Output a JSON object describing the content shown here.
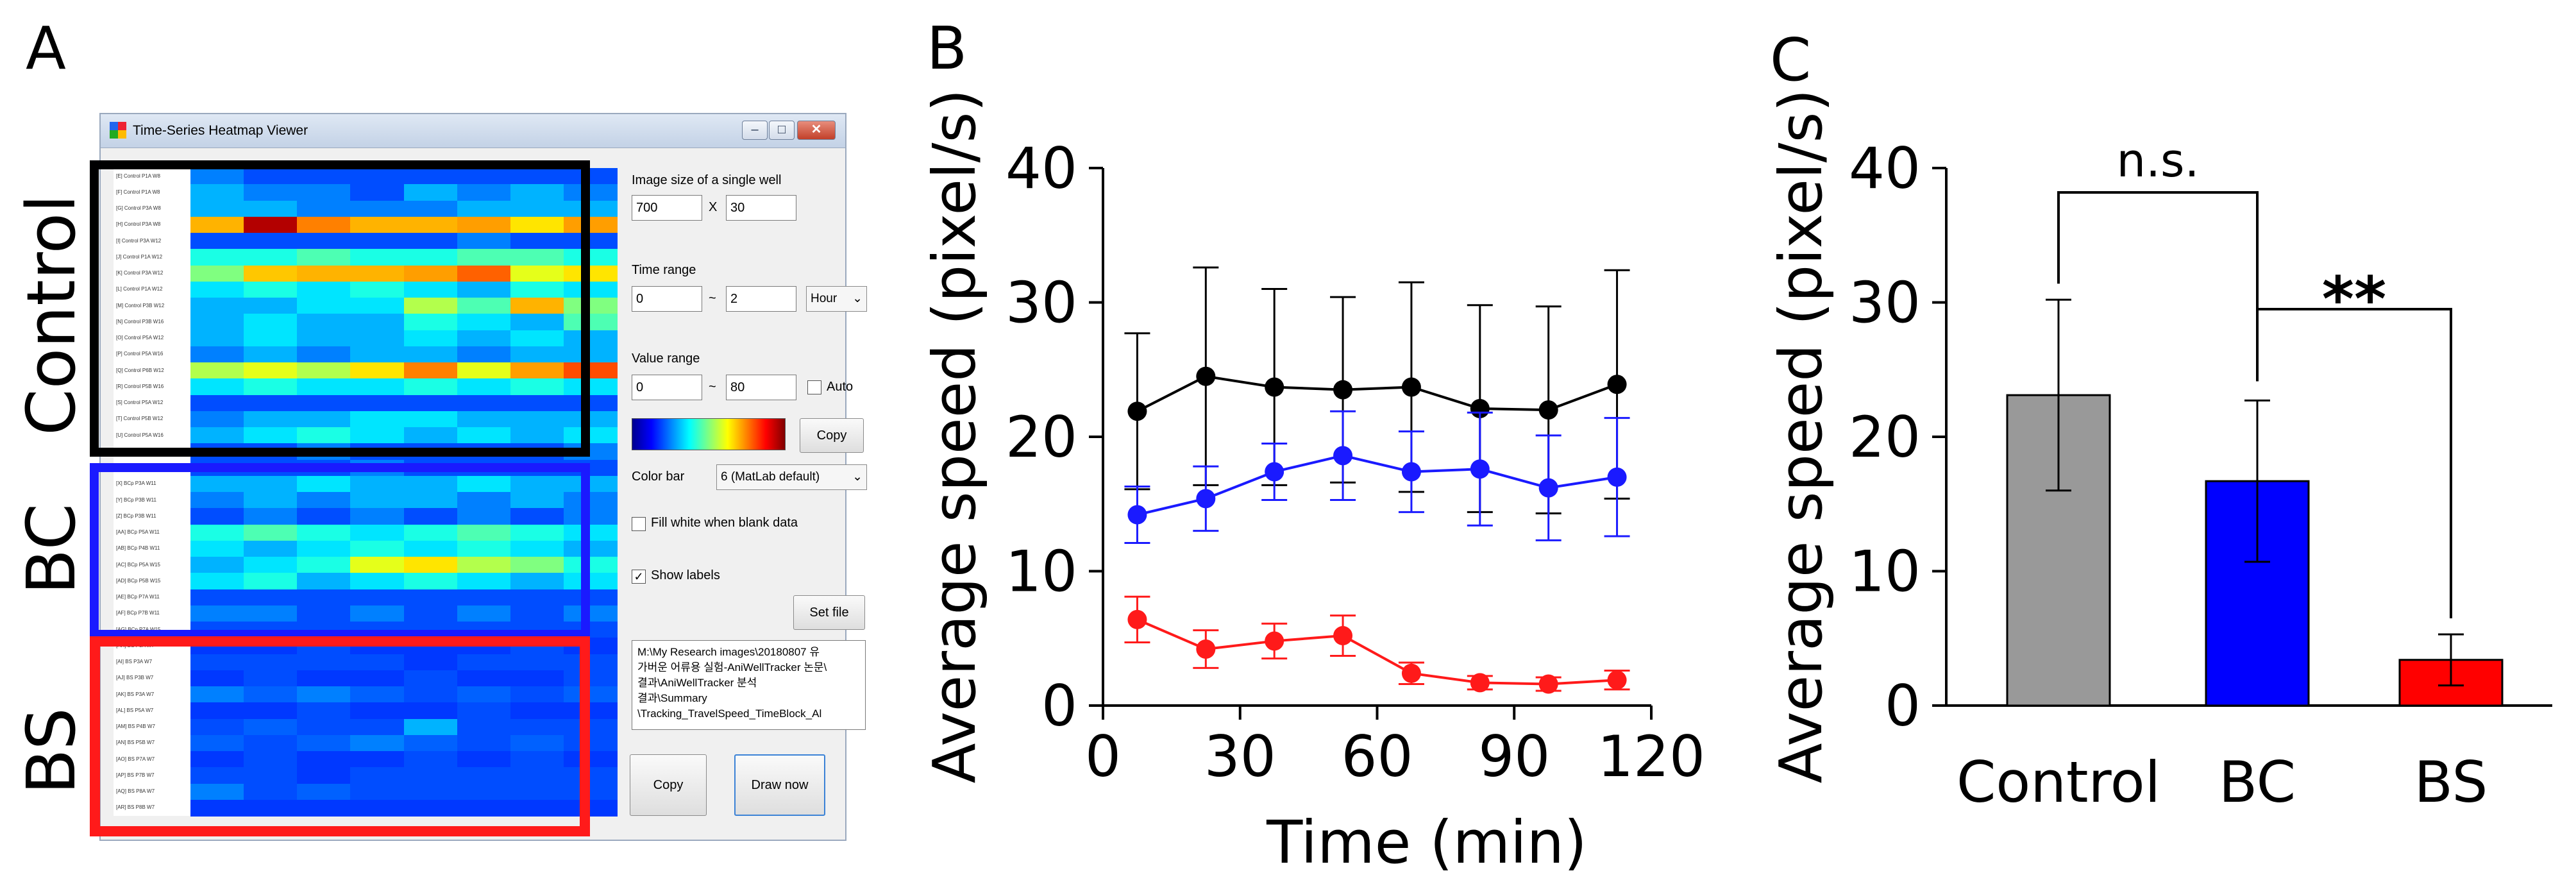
{
  "panels": {
    "a": "A",
    "b": "B",
    "c": "C"
  },
  "panel_a": {
    "group_labels": [
      "Control",
      "BC",
      "BS"
    ],
    "group_colors": [
      "#000000",
      "#1a1aff",
      "#ff1a1a"
    ],
    "window": {
      "title": "Time-Series Heatmap Viewer",
      "minimize": "–",
      "maximize": "□",
      "close": "✕",
      "image_size_label": "Image size of a single well",
      "image_width": "700",
      "x_sep": "X",
      "image_height": "30",
      "time_range_label": "Time range",
      "time_from": "0",
      "tilde": "~",
      "time_to": "2",
      "time_unit": "Hour",
      "value_range_label": "Value range",
      "value_from": "0",
      "value_to": "80",
      "auto_label": "Auto",
      "copy_colorbar": "Copy",
      "color_bar_label": "Color bar",
      "color_bar_value": "6 (MatLab default)",
      "fill_white_label": "Fill white when blank data",
      "show_labels_label": "Show labels",
      "set_file": "Set file",
      "path_lines": [
        "M:\\My Research images\\20180807 유",
        "가버운 어류용 실험-AniWellTracker 논문\\",
        "결과\\AniWellTracker 분석",
        "결과\\Summary",
        "\\Tracking_TravelSpeed_TimeBlock_Al"
      ],
      "copy_button": "Copy",
      "draw_now": "Draw now"
    },
    "heatmap_rows": [
      {
        "label": "[E] Control P1A W8",
        "v": [
          0.25,
          0.2,
          0.2,
          0.2,
          0.2,
          0.2,
          0.2,
          0.2
        ]
      },
      {
        "label": "[F] Control P1A W8",
        "v": [
          0.3,
          0.25,
          0.25,
          0.2,
          0.3,
          0.25,
          0.3,
          0.25
        ]
      },
      {
        "label": "[G] Control P3A W8",
        "v": [
          0.3,
          0.3,
          0.25,
          0.25,
          0.25,
          0.3,
          0.3,
          0.3
        ]
      },
      {
        "label": "[H] Control P3A W8",
        "v": [
          0.7,
          0.95,
          0.75,
          0.7,
          0.7,
          0.72,
          0.65,
          0.72
        ]
      },
      {
        "label": "[I] Control P3A W12",
        "v": [
          0.2,
          0.2,
          0.2,
          0.2,
          0.2,
          0.25,
          0.2,
          0.2
        ]
      },
      {
        "label": "[J] Control P1A W12",
        "v": [
          0.4,
          0.4,
          0.45,
          0.4,
          0.4,
          0.45,
          0.45,
          0.4
        ]
      },
      {
        "label": "[K] Control P3A W12",
        "v": [
          0.5,
          0.68,
          0.7,
          0.7,
          0.72,
          0.78,
          0.6,
          0.65
        ]
      },
      {
        "label": "[L] Control P1A W12",
        "v": [
          0.35,
          0.4,
          0.35,
          0.4,
          0.35,
          0.3,
          0.4,
          0.35
        ]
      },
      {
        "label": "[M] Control P3B W12",
        "v": [
          0.3,
          0.3,
          0.35,
          0.35,
          0.55,
          0.45,
          0.7,
          0.5
        ]
      },
      {
        "label": "[N] Control P3B W16",
        "v": [
          0.3,
          0.35,
          0.3,
          0.3,
          0.4,
          0.35,
          0.3,
          0.45
        ]
      },
      {
        "label": "[O] Control P5A W12",
        "v": [
          0.3,
          0.35,
          0.3,
          0.3,
          0.35,
          0.3,
          0.35,
          0.3
        ]
      },
      {
        "label": "[P] Control P5A W16",
        "v": [
          0.25,
          0.3,
          0.25,
          0.3,
          0.3,
          0.25,
          0.3,
          0.3
        ]
      },
      {
        "label": "[Q] Control P6B W12",
        "v": [
          0.55,
          0.6,
          0.55,
          0.65,
          0.75,
          0.6,
          0.72,
          0.8
        ]
      },
      {
        "label": "[R] Control P5B W16",
        "v": [
          0.35,
          0.4,
          0.35,
          0.35,
          0.4,
          0.35,
          0.4,
          0.35
        ]
      },
      {
        "label": "[S] Control P5A W12",
        "v": [
          0.2,
          0.2,
          0.2,
          0.2,
          0.2,
          0.2,
          0.2,
          0.2
        ]
      },
      {
        "label": "[T] Control P5B W12",
        "v": [
          0.25,
          0.3,
          0.3,
          0.35,
          0.35,
          0.3,
          0.3,
          0.3
        ]
      },
      {
        "label": "[U] Control P5A W16",
        "v": [
          0.3,
          0.35,
          0.4,
          0.35,
          0.3,
          0.35,
          0.3,
          0.35
        ]
      },
      {
        "label": "[V] Control P4B W15",
        "v": [
          0.2,
          0.2,
          0.25,
          0.2,
          0.2,
          0.2,
          0.2,
          0.25
        ]
      },
      {
        "label": "[W] BCp P3A W11",
        "v": [
          0.2,
          0.2,
          0.2,
          0.25,
          0.2,
          0.2,
          0.2,
          0.2
        ]
      },
      {
        "label": "[X] BCp P3A W11",
        "v": [
          0.3,
          0.3,
          0.35,
          0.3,
          0.3,
          0.35,
          0.3,
          0.3
        ]
      },
      {
        "label": "[Y] BCp P3B W11",
        "v": [
          0.25,
          0.3,
          0.25,
          0.3,
          0.3,
          0.25,
          0.3,
          0.25
        ]
      },
      {
        "label": "[Z] BCp P3B W11",
        "v": [
          0.2,
          0.25,
          0.2,
          0.25,
          0.2,
          0.25,
          0.2,
          0.25
        ]
      },
      {
        "label": "[AA] BCp P5A W11",
        "v": [
          0.4,
          0.45,
          0.4,
          0.35,
          0.4,
          0.45,
          0.4,
          0.35
        ]
      },
      {
        "label": "[AB] BCp P4B W11",
        "v": [
          0.35,
          0.3,
          0.35,
          0.4,
          0.35,
          0.4,
          0.35,
          0.3
        ]
      },
      {
        "label": "[AC] BCp P5A W15",
        "v": [
          0.3,
          0.35,
          0.4,
          0.6,
          0.65,
          0.55,
          0.5,
          0.4
        ]
      },
      {
        "label": "[AD] BCp P5B W15",
        "v": [
          0.35,
          0.4,
          0.3,
          0.35,
          0.4,
          0.35,
          0.3,
          0.35
        ]
      },
      {
        "label": "[AE] BCp P7A W11",
        "v": [
          0.2,
          0.2,
          0.2,
          0.2,
          0.2,
          0.2,
          0.2,
          0.2
        ]
      },
      {
        "label": "[AF] BCp P7B W11",
        "v": [
          0.25,
          0.25,
          0.2,
          0.25,
          0.2,
          0.25,
          0.2,
          0.25
        ]
      },
      {
        "label": "[AG] BCp P7A W15",
        "v": [
          0.2,
          0.2,
          0.2,
          0.2,
          0.2,
          0.2,
          0.2,
          0.2
        ]
      },
      {
        "label": "[AH] BS P3A W7",
        "v": [
          0.18,
          0.18,
          0.2,
          0.18,
          0.18,
          0.18,
          0.2,
          0.18
        ]
      },
      {
        "label": "[AI] BS P3A W7",
        "v": [
          0.2,
          0.2,
          0.2,
          0.2,
          0.18,
          0.2,
          0.2,
          0.2
        ]
      },
      {
        "label": "[AJ] BS P3B W7",
        "v": [
          0.18,
          0.2,
          0.18,
          0.18,
          0.2,
          0.18,
          0.18,
          0.2
        ]
      },
      {
        "label": "[AK] BS P3A W7",
        "v": [
          0.25,
          0.22,
          0.25,
          0.22,
          0.2,
          0.22,
          0.2,
          0.22
        ]
      },
      {
        "label": "[AL] BS P5A W7",
        "v": [
          0.18,
          0.18,
          0.2,
          0.18,
          0.18,
          0.2,
          0.18,
          0.18
        ]
      },
      {
        "label": "[AM] BS P4B W7",
        "v": [
          0.2,
          0.22,
          0.2,
          0.2,
          0.3,
          0.2,
          0.2,
          0.2
        ]
      },
      {
        "label": "[AN] BS P5B W7",
        "v": [
          0.22,
          0.2,
          0.22,
          0.25,
          0.22,
          0.2,
          0.22,
          0.2
        ]
      },
      {
        "label": "[AO] BS P7A W7",
        "v": [
          0.18,
          0.2,
          0.18,
          0.18,
          0.2,
          0.18,
          0.2,
          0.18
        ]
      },
      {
        "label": "[AP] BS P7B W7",
        "v": [
          0.2,
          0.2,
          0.18,
          0.2,
          0.2,
          0.2,
          0.2,
          0.2
        ]
      },
      {
        "label": "[AQ] BS P8A W7",
        "v": [
          0.25,
          0.2,
          0.22,
          0.2,
          0.2,
          0.2,
          0.2,
          0.2
        ]
      },
      {
        "label": "[AR] BS P8B W7",
        "v": [
          0.18,
          0.18,
          0.18,
          0.18,
          0.18,
          0.18,
          0.18,
          0.18
        ]
      }
    ]
  },
  "chart_data": [
    {
      "type": "line",
      "panel": "B",
      "xlabel": "Time (min)",
      "ylabel": "Average speed (pixel/s)",
      "xlim": [
        0,
        120
      ],
      "ylim": [
        0,
        40
      ],
      "xticks": [
        0,
        30,
        60,
        90,
        120
      ],
      "yticks": [
        0,
        10,
        20,
        30,
        40
      ],
      "x": [
        7.5,
        22.5,
        37.5,
        52.5,
        67.5,
        82.5,
        97.5,
        112.5
      ],
      "series": [
        {
          "color": "#000000",
          "values": [
            21.9,
            24.5,
            23.7,
            23.5,
            23.7,
            22.1,
            22.0,
            23.9
          ],
          "errors": [
            5.8,
            8.1,
            7.3,
            6.9,
            7.8,
            7.7,
            7.7,
            8.5
          ]
        },
        {
          "color": "#1a1aff",
          "values": [
            14.2,
            15.4,
            17.4,
            18.6,
            17.4,
            17.6,
            16.2,
            17.0
          ],
          "errors": [
            2.1,
            2.4,
            2.1,
            3.3,
            3.0,
            4.2,
            3.9,
            4.4
          ]
        },
        {
          "color": "#ff1a1a",
          "values": [
            6.4,
            4.2,
            4.8,
            5.2,
            2.4,
            1.7,
            1.6,
            1.9
          ],
          "errors": [
            1.7,
            1.4,
            1.3,
            1.5,
            0.8,
            0.5,
            0.5,
            0.7
          ]
        }
      ]
    },
    {
      "type": "bar",
      "panel": "C",
      "ylabel": "Average speed (pixel/s)",
      "ylim": [
        0,
        40
      ],
      "yticks": [
        0,
        10,
        20,
        30,
        40
      ],
      "categories": [
        "Control",
        "BC",
        "BS"
      ],
      "values": [
        23.1,
        16.7,
        3.4
      ],
      "errors": [
        7.1,
        6.0,
        1.9
      ],
      "colors": [
        "#999999",
        "#0000ff",
        "#ff0000"
      ],
      "significance": [
        {
          "from": "Control",
          "to": "BC",
          "label": "n.s."
        },
        {
          "from": "BC",
          "to": "BS",
          "label": "**"
        }
      ]
    }
  ]
}
